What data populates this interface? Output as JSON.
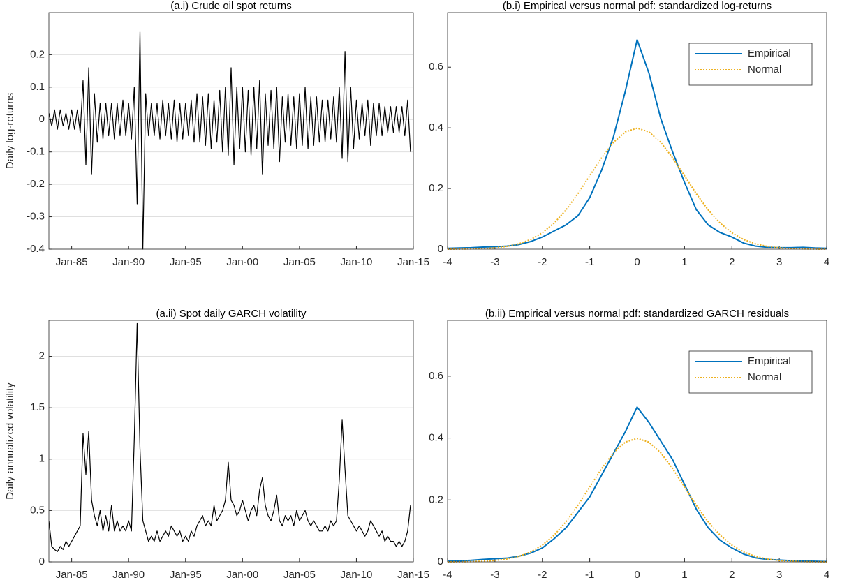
{
  "chart_data": [
    {
      "type": "line",
      "title": "(a.i) Crude oil spot returns",
      "y_label": "Daily log-returns",
      "color": "#000000",
      "grid": true,
      "xlim": [
        1983,
        2015
      ],
      "ylim": [
        -0.4,
        0.33
      ],
      "xticks": [
        {
          "value": 1985,
          "label": "Jan-85"
        },
        {
          "value": 1990,
          "label": "Jan-90"
        },
        {
          "value": 1995,
          "label": "Jan-95"
        },
        {
          "value": 2000,
          "label": "Jan-00"
        },
        {
          "value": 2005,
          "label": "Jan-05"
        },
        {
          "value": 2010,
          "label": "Jan-10"
        },
        {
          "value": 2015,
          "label": "Jan-15"
        }
      ],
      "yticks": [
        -0.4,
        -0.3,
        -0.2,
        -0.1,
        0,
        0.1,
        0.2
      ],
      "x": [
        1983,
        1983.25,
        1983.5,
        1983.75,
        1984,
        1984.25,
        1984.5,
        1984.75,
        1985,
        1985.25,
        1985.5,
        1985.75,
        1986,
        1986.25,
        1986.5,
        1986.75,
        1987,
        1987.25,
        1987.5,
        1987.75,
        1988,
        1988.25,
        1988.5,
        1988.75,
        1989,
        1989.25,
        1989.5,
        1989.75,
        1990,
        1990.25,
        1990.5,
        1990.75,
        1991,
        1991.25,
        1991.5,
        1991.75,
        1992,
        1992.25,
        1992.5,
        1992.75,
        1993,
        1993.25,
        1993.5,
        1993.75,
        1994,
        1994.25,
        1994.5,
        1994.75,
        1995,
        1995.25,
        1995.5,
        1995.75,
        1996,
        1996.25,
        1996.5,
        1996.75,
        1997,
        1997.25,
        1997.5,
        1997.75,
        1998,
        1998.25,
        1998.5,
        1998.75,
        1999,
        1999.25,
        1999.5,
        1999.75,
        2000,
        2000.25,
        2000.5,
        2000.75,
        2001,
        2001.25,
        2001.5,
        2001.75,
        2002,
        2002.25,
        2002.5,
        2002.75,
        2003,
        2003.25,
        2003.5,
        2003.75,
        2004,
        2004.25,
        2004.5,
        2004.75,
        2005,
        2005.25,
        2005.5,
        2005.75,
        2006,
        2006.25,
        2006.5,
        2006.75,
        2007,
        2007.25,
        2007.5,
        2007.75,
        2008,
        2008.25,
        2008.5,
        2008.75,
        2009,
        2009.25,
        2009.5,
        2009.75,
        2010,
        2010.25,
        2010.5,
        2010.75,
        2011,
        2011.25,
        2011.5,
        2011.75,
        2012,
        2012.25,
        2012.5,
        2012.75,
        2013,
        2013.25,
        2013.5,
        2013.75,
        2014,
        2014.25,
        2014.5,
        2014.75
      ],
      "values": [
        0.02,
        -0.02,
        0.03,
        -0.03,
        0.03,
        -0.02,
        0.02,
        -0.03,
        0.03,
        -0.03,
        0.03,
        -0.04,
        0.12,
        -0.14,
        0.16,
        -0.17,
        0.08,
        -0.07,
        0.05,
        -0.06,
        0.05,
        -0.05,
        0.05,
        -0.06,
        0.05,
        -0.05,
        0.06,
        -0.05,
        0.05,
        -0.06,
        0.1,
        -0.26,
        0.27,
        -0.4,
        0.08,
        -0.05,
        0.05,
        -0.05,
        0.05,
        -0.06,
        0.06,
        -0.05,
        0.05,
        -0.06,
        0.06,
        -0.07,
        0.05,
        -0.06,
        0.05,
        -0.05,
        0.06,
        -0.07,
        0.08,
        -0.07,
        0.07,
        -0.08,
        0.08,
        -0.09,
        0.06,
        -0.07,
        0.09,
        -0.1,
        0.1,
        -0.11,
        0.16,
        -0.14,
        0.1,
        -0.09,
        0.1,
        -0.1,
        0.09,
        -0.11,
        0.1,
        -0.09,
        0.12,
        -0.17,
        0.08,
        -0.08,
        0.09,
        -0.09,
        0.1,
        -0.13,
        0.07,
        -0.07,
        0.08,
        -0.08,
        0.07,
        -0.09,
        0.08,
        -0.08,
        0.1,
        -0.09,
        0.07,
        -0.08,
        0.07,
        -0.07,
        0.06,
        -0.07,
        0.06,
        -0.06,
        0.07,
        -0.07,
        0.1,
        -0.12,
        0.21,
        -0.13,
        0.1,
        -0.09,
        0.06,
        -0.06,
        0.05,
        -0.05,
        0.06,
        -0.08,
        0.05,
        -0.05,
        0.05,
        -0.05,
        0.04,
        -0.04,
        0.04,
        -0.04,
        0.04,
        -0.04,
        0.04,
        -0.05,
        0.06,
        -0.1
      ]
    },
    {
      "type": "line",
      "title": "(a.ii)  Spot daily GARCH volatility",
      "y_label": "Daily annualized volatility",
      "color": "#000000",
      "grid": true,
      "xlim": [
        1983,
        2015
      ],
      "ylim": [
        0,
        2.35
      ],
      "xticks": [
        {
          "value": 1985,
          "label": "Jan-85"
        },
        {
          "value": 1990,
          "label": "Jan-90"
        },
        {
          "value": 1995,
          "label": "Jan-95"
        },
        {
          "value": 2000,
          "label": "Jan-00"
        },
        {
          "value": 2005,
          "label": "Jan-05"
        },
        {
          "value": 2010,
          "label": "Jan-10"
        },
        {
          "value": 2015,
          "label": "Jan-15"
        }
      ],
      "yticks": [
        0,
        0.5,
        1,
        1.5,
        2
      ],
      "x": [
        1983,
        1983.25,
        1983.5,
        1983.75,
        1984,
        1984.25,
        1984.5,
        1984.75,
        1985,
        1985.25,
        1985.5,
        1985.75,
        1986,
        1986.25,
        1986.5,
        1986.75,
        1987,
        1987.25,
        1987.5,
        1987.75,
        1988,
        1988.25,
        1988.5,
        1988.75,
        1989,
        1989.25,
        1989.5,
        1989.75,
        1990,
        1990.25,
        1990.5,
        1990.75,
        1991,
        1991.25,
        1991.5,
        1991.75,
        1992,
        1992.25,
        1992.5,
        1992.75,
        1993,
        1993.25,
        1993.5,
        1993.75,
        1994,
        1994.25,
        1994.5,
        1994.75,
        1995,
        1995.25,
        1995.5,
        1995.75,
        1996,
        1996.25,
        1996.5,
        1996.75,
        1997,
        1997.25,
        1997.5,
        1997.75,
        1998,
        1998.25,
        1998.5,
        1998.75,
        1999,
        1999.25,
        1999.5,
        1999.75,
        2000,
        2000.25,
        2000.5,
        2000.75,
        2001,
        2001.25,
        2001.5,
        2001.75,
        2002,
        2002.25,
        2002.5,
        2002.75,
        2003,
        2003.25,
        2003.5,
        2003.75,
        2004,
        2004.25,
        2004.5,
        2004.75,
        2005,
        2005.25,
        2005.5,
        2005.75,
        2006,
        2006.25,
        2006.5,
        2006.75,
        2007,
        2007.25,
        2007.5,
        2007.75,
        2008,
        2008.25,
        2008.5,
        2008.75,
        2009,
        2009.25,
        2009.5,
        2009.75,
        2010,
        2010.25,
        2010.5,
        2010.75,
        2011,
        2011.25,
        2011.5,
        2011.75,
        2012,
        2012.25,
        2012.5,
        2012.75,
        2013,
        2013.25,
        2013.5,
        2013.75,
        2014,
        2014.25,
        2014.5,
        2014.75
      ],
      "values": [
        0.4,
        0.15,
        0.12,
        0.1,
        0.15,
        0.12,
        0.2,
        0.15,
        0.2,
        0.25,
        0.3,
        0.35,
        1.25,
        0.85,
        1.27,
        0.6,
        0.45,
        0.35,
        0.5,
        0.3,
        0.45,
        0.3,
        0.55,
        0.3,
        0.4,
        0.3,
        0.35,
        0.3,
        0.4,
        0.3,
        1.2,
        2.32,
        1.1,
        0.4,
        0.3,
        0.2,
        0.25,
        0.2,
        0.3,
        0.2,
        0.25,
        0.3,
        0.25,
        0.35,
        0.3,
        0.25,
        0.3,
        0.2,
        0.25,
        0.2,
        0.3,
        0.25,
        0.35,
        0.4,
        0.45,
        0.35,
        0.4,
        0.35,
        0.55,
        0.4,
        0.45,
        0.5,
        0.6,
        0.97,
        0.6,
        0.55,
        0.45,
        0.5,
        0.6,
        0.5,
        0.4,
        0.5,
        0.55,
        0.45,
        0.7,
        0.82,
        0.55,
        0.45,
        0.4,
        0.5,
        0.65,
        0.4,
        0.35,
        0.45,
        0.4,
        0.45,
        0.35,
        0.5,
        0.4,
        0.45,
        0.5,
        0.4,
        0.35,
        0.4,
        0.35,
        0.3,
        0.3,
        0.35,
        0.3,
        0.4,
        0.35,
        0.4,
        0.8,
        1.38,
        0.9,
        0.45,
        0.4,
        0.35,
        0.3,
        0.35,
        0.3,
        0.25,
        0.3,
        0.4,
        0.35,
        0.3,
        0.25,
        0.3,
        0.2,
        0.25,
        0.2,
        0.2,
        0.15,
        0.2,
        0.15,
        0.2,
        0.3,
        0.55
      ]
    },
    {
      "type": "line",
      "title": "(b.i) Empirical versus normal pdf: standardized log-returns",
      "grid": false,
      "legend": "northeast",
      "xlim": [
        -4,
        4
      ],
      "ylim": [
        0,
        0.78
      ],
      "xticks": [
        -4,
        -3,
        -2,
        -1,
        0,
        1,
        2,
        3,
        4
      ],
      "yticks": [
        0,
        0.2,
        0.4,
        0.6
      ],
      "x": [
        -4,
        -3.75,
        -3.5,
        -3.25,
        -3,
        -2.75,
        -2.5,
        -2.25,
        -2,
        -1.75,
        -1.5,
        -1.25,
        -1,
        -0.75,
        -0.5,
        -0.25,
        0,
        0.25,
        0.5,
        0.75,
        1,
        1.25,
        1.5,
        1.75,
        2,
        2.25,
        2.5,
        2.75,
        3,
        3.25,
        3.5,
        3.75,
        4
      ],
      "series": [
        {
          "name": "Empirical",
          "color": "#0072bd",
          "style": "solid",
          "values": [
            0.003,
            0.004,
            0.005,
            0.007,
            0.008,
            0.01,
            0.015,
            0.025,
            0.04,
            0.06,
            0.08,
            0.11,
            0.17,
            0.26,
            0.37,
            0.52,
            0.69,
            0.58,
            0.43,
            0.32,
            0.22,
            0.13,
            0.08,
            0.055,
            0.04,
            0.02,
            0.01,
            0.006,
            0.005,
            0.005,
            0.006,
            0.004,
            0.003
          ]
        },
        {
          "name": "Normal",
          "color": "#edb120",
          "style": "dotted",
          "values": [
            0.0001,
            0.0004,
            0.0009,
            0.002,
            0.0044,
            0.0091,
            0.0175,
            0.0317,
            0.054,
            0.0863,
            0.1295,
            0.1826,
            0.242,
            0.3011,
            0.3521,
            0.3867,
            0.3989,
            0.3867,
            0.3521,
            0.3011,
            0.242,
            0.1826,
            0.1295,
            0.0863,
            0.054,
            0.0317,
            0.0175,
            0.0091,
            0.0044,
            0.002,
            0.0009,
            0.0004,
            0.0001
          ]
        }
      ]
    },
    {
      "type": "line",
      "title": "(b.ii) Empirical versus normal pdf: standardized GARCH residuals",
      "grid": false,
      "legend": "northeast",
      "xlim": [
        -4,
        4
      ],
      "ylim": [
        0,
        0.78
      ],
      "xticks": [
        -4,
        -3,
        -2,
        -1,
        0,
        1,
        2,
        3,
        4
      ],
      "yticks": [
        0,
        0.2,
        0.4,
        0.6
      ],
      "x": [
        -4,
        -3.75,
        -3.5,
        -3.25,
        -3,
        -2.75,
        -2.5,
        -2.25,
        -2,
        -1.75,
        -1.5,
        -1.25,
        -1,
        -0.75,
        -0.5,
        -0.25,
        0,
        0.25,
        0.5,
        0.75,
        1,
        1.25,
        1.5,
        1.75,
        2,
        2.25,
        2.5,
        2.75,
        3,
        3.25,
        3.5,
        3.75,
        4
      ],
      "series": [
        {
          "name": "Empirical",
          "color": "#0072bd",
          "style": "solid",
          "values": [
            0.002,
            0.003,
            0.005,
            0.008,
            0.01,
            0.012,
            0.018,
            0.028,
            0.045,
            0.075,
            0.11,
            0.16,
            0.21,
            0.28,
            0.35,
            0.42,
            0.5,
            0.45,
            0.39,
            0.33,
            0.25,
            0.17,
            0.11,
            0.07,
            0.045,
            0.025,
            0.013,
            0.008,
            0.006,
            0.004,
            0.003,
            0.002,
            0.001
          ]
        },
        {
          "name": "Normal",
          "color": "#edb120",
          "style": "dotted",
          "values": [
            0.0001,
            0.0004,
            0.0009,
            0.002,
            0.0044,
            0.0091,
            0.0175,
            0.0317,
            0.054,
            0.0863,
            0.1295,
            0.1826,
            0.242,
            0.3011,
            0.3521,
            0.3867,
            0.3989,
            0.3867,
            0.3521,
            0.3011,
            0.242,
            0.1826,
            0.1295,
            0.0863,
            0.054,
            0.0317,
            0.0175,
            0.0091,
            0.0044,
            0.002,
            0.0009,
            0.0004,
            0.0001
          ]
        }
      ]
    }
  ]
}
